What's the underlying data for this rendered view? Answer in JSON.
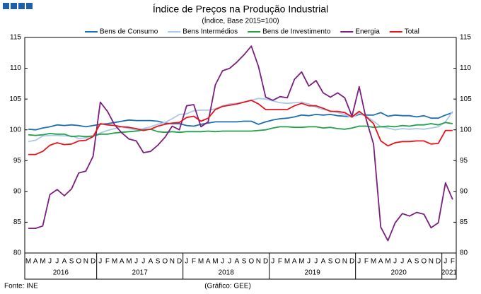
{
  "chart_data": {
    "type": "line",
    "title": "Índice de Preços na Produção Industrial",
    "subtitle": "(Índice, Base 2015=100)",
    "source": "Fonte: INE",
    "credit": "(Gráfico: GEE)",
    "categories": [
      "M",
      "A",
      "M",
      "J",
      "J",
      "A",
      "S",
      "O",
      "N",
      "D",
      "J",
      "F",
      "M",
      "A",
      "M",
      "J",
      "J",
      "A",
      "S",
      "O",
      "N",
      "D",
      "J",
      "F",
      "M",
      "A",
      "M",
      "J",
      "J",
      "A",
      "S",
      "O",
      "N",
      "D",
      "J",
      "F",
      "M",
      "A",
      "M",
      "J",
      "J",
      "A",
      "S",
      "O",
      "N",
      "D",
      "J",
      "F",
      "M",
      "A",
      "M",
      "J",
      "J",
      "A",
      "S",
      "O",
      "N",
      "D",
      "J",
      "F"
    ],
    "x_groups": [
      "2016",
      "2017",
      "2018",
      "2019",
      "2020",
      "2021"
    ],
    "ylim": [
      80,
      115
    ],
    "yticks": [
      80,
      85,
      90,
      95,
      100,
      105,
      110,
      115
    ],
    "y2lim": [
      80,
      115
    ],
    "y2ticks": [
      80,
      85,
      90,
      95,
      100,
      105,
      110,
      115
    ],
    "grid": false,
    "legend": "top",
    "series": [
      {
        "name": "Bens de Consumo",
        "color": "#1f6fb0",
        "values": [
          100.1,
          100,
          100.3,
          100.5,
          100.8,
          100.7,
          100.8,
          100.7,
          100.5,
          100.7,
          100.9,
          101,
          101.2,
          101.4,
          101.6,
          101.5,
          101.5,
          101.5,
          101.4,
          101.1,
          101,
          101,
          100.7,
          100.6,
          100.9,
          101.1,
          101.3,
          101.3,
          101.3,
          101.3,
          101.4,
          101.4,
          100.9,
          101.3,
          101.6,
          101.8,
          101.9,
          102.1,
          102.4,
          102.3,
          102.5,
          102.4,
          102.5,
          102.3,
          102.2,
          102.1,
          102.5,
          102.4,
          102.4,
          102.8,
          102.2,
          102.4,
          102.3,
          102.3,
          102.1,
          102.3,
          101.9,
          101.9,
          102.4,
          102.8
        ]
      },
      {
        "name": "Bens Intermédios",
        "color": "#a9c8ea",
        "values": [
          98.1,
          98.3,
          99,
          99.1,
          99.1,
          99,
          99,
          98.6,
          98.7,
          99,
          99.5,
          99.9,
          100.2,
          100.5,
          100.2,
          100,
          100.2,
          100.5,
          100.9,
          101.2,
          101.8,
          102.5,
          102.6,
          103.1,
          103.2,
          103.2,
          103.4,
          103.9,
          104.2,
          104.3,
          104.5,
          104.8,
          105.1,
          105,
          104.7,
          104.4,
          104.3,
          104.4,
          104.5,
          104.2,
          103.7,
          103.3,
          103.1,
          102.8,
          102.5,
          102,
          102.7,
          102.2,
          101.4,
          100.5,
          100.3,
          100,
          100.2,
          100.1,
          100.2,
          100.1,
          100.3,
          100.5,
          101.3,
          103
        ]
      },
      {
        "name": "Bens de Investimento",
        "color": "#22a04a",
        "values": [
          99.2,
          99.1,
          99.2,
          99.4,
          99.3,
          99.3,
          98.9,
          99,
          98.9,
          99,
          99.3,
          99.3,
          99.5,
          99.6,
          99.7,
          99.8,
          100,
          100.1,
          99.7,
          99.6,
          99.7,
          99.6,
          99.7,
          99.7,
          99.7,
          99.8,
          99.7,
          99.8,
          99.8,
          99.8,
          99.8,
          99.8,
          99.9,
          100,
          100.3,
          100.5,
          100.5,
          100.4,
          100.4,
          100.5,
          100.5,
          100.3,
          100.4,
          100.2,
          100.1,
          100.3,
          100.6,
          100.6,
          100.4,
          100.5,
          100.6,
          100.5,
          100.7,
          100.6,
          100.8,
          100.8,
          101,
          100.8,
          101.2,
          101
        ]
      },
      {
        "name": "Energia",
        "color": "#7b1f7f",
        "values": [
          84,
          84,
          84.4,
          89.5,
          90.3,
          89.3,
          90.4,
          93,
          93.3,
          95.7,
          104.5,
          103,
          100.8,
          99.5,
          98.5,
          98.2,
          96.3,
          96.5,
          97.5,
          98.8,
          100.6,
          100,
          103.9,
          104.1,
          100.5,
          101.3,
          107.3,
          109.6,
          110,
          111,
          112.2,
          113.6,
          110.3,
          105.3,
          104.8,
          105.4,
          105.2,
          108.2,
          109.4,
          107.1,
          108,
          106,
          105.3,
          106,
          105.2,
          102.2,
          107,
          101.6,
          97.7,
          84.2,
          82,
          84.9,
          86.4,
          86,
          86.6,
          86.3,
          84.1,
          84.9,
          91.4,
          88.7
        ]
      },
      {
        "name": "Total",
        "color": "#e8141b",
        "values": [
          96,
          96,
          96.5,
          97.5,
          97.9,
          97.6,
          97.7,
          98.2,
          98.3,
          98.9,
          101,
          100.8,
          100.7,
          100.5,
          100.4,
          100.2,
          99.9,
          100.1,
          100.6,
          100.9,
          101.1,
          101.2,
          102,
          102.2,
          101.4,
          101.9,
          103.3,
          103.8,
          104,
          104.2,
          104.5,
          104.8,
          104.2,
          103.3,
          103.3,
          103.3,
          103.3,
          103.9,
          104.3,
          103.9,
          103.9,
          103.5,
          103,
          103,
          102.8,
          102.1,
          103,
          102.1,
          101,
          98.2,
          97.4,
          97.9,
          98.1,
          98.1,
          98.2,
          98.2,
          97.7,
          97.8,
          99.9,
          99.9
        ]
      }
    ]
  }
}
